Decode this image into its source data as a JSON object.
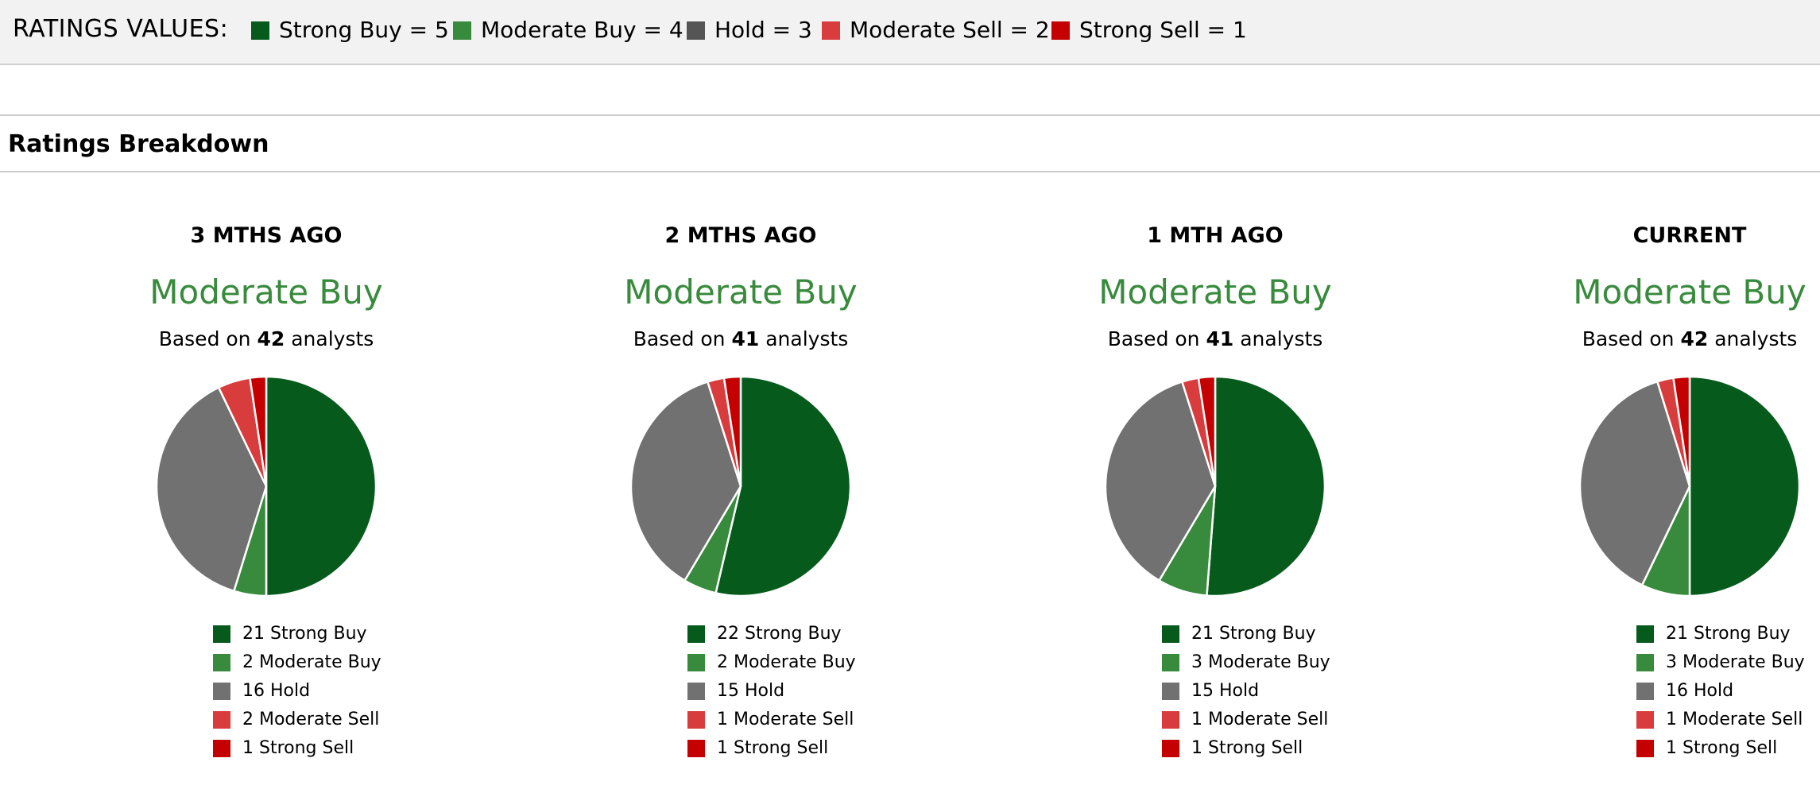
{
  "ratings_values": {
    "title": "RATINGS VALUES:",
    "items": [
      {
        "label": "Strong Buy = 5",
        "color": "#065a1c"
      },
      {
        "label": "Moderate Buy = 4",
        "color": "#388a3c"
      },
      {
        "label": "Hold = 3",
        "color": "#555555"
      },
      {
        "label": "Moderate Sell = 2",
        "color": "#d93c3c"
      },
      {
        "label": "Strong Sell = 1",
        "color": "#c40000"
      }
    ]
  },
  "section": {
    "title": "Ratings Breakdown"
  },
  "colors": {
    "strong_buy": "#065a1c",
    "moderate_buy": "#388a3c",
    "hold": "#717171",
    "moderate_sell": "#d93c3c",
    "strong_sell": "#c40000",
    "rating_text": "#388a3c"
  },
  "chart_data": [
    {
      "type": "pie",
      "title": "3 MTHS AGO",
      "rating": "Moderate Buy",
      "based_on_prefix": "Based on",
      "analysts": 42,
      "based_on_suffix": "analysts",
      "slices": [
        {
          "category": "Strong Buy",
          "value": 21,
          "label": "21 Strong Buy"
        },
        {
          "category": "Moderate Buy",
          "value": 2,
          "label": "2 Moderate Buy"
        },
        {
          "category": "Hold",
          "value": 16,
          "label": "16 Hold"
        },
        {
          "category": "Moderate Sell",
          "value": 2,
          "label": "2 Moderate Sell"
        },
        {
          "category": "Strong Sell",
          "value": 1,
          "label": "1 Strong Sell"
        }
      ]
    },
    {
      "type": "pie",
      "title": "2 MTHS AGO",
      "rating": "Moderate Buy",
      "based_on_prefix": "Based on",
      "analysts": 41,
      "based_on_suffix": "analysts",
      "slices": [
        {
          "category": "Strong Buy",
          "value": 22,
          "label": "22 Strong Buy"
        },
        {
          "category": "Moderate Buy",
          "value": 2,
          "label": "2 Moderate Buy"
        },
        {
          "category": "Hold",
          "value": 15,
          "label": "15 Hold"
        },
        {
          "category": "Moderate Sell",
          "value": 1,
          "label": "1 Moderate Sell"
        },
        {
          "category": "Strong Sell",
          "value": 1,
          "label": "1 Strong Sell"
        }
      ]
    },
    {
      "type": "pie",
      "title": "1 MTH AGO",
      "rating": "Moderate Buy",
      "based_on_prefix": "Based on",
      "analysts": 41,
      "based_on_suffix": "analysts",
      "slices": [
        {
          "category": "Strong Buy",
          "value": 21,
          "label": "21 Strong Buy"
        },
        {
          "category": "Moderate Buy",
          "value": 3,
          "label": "3 Moderate Buy"
        },
        {
          "category": "Hold",
          "value": 15,
          "label": "15 Hold"
        },
        {
          "category": "Moderate Sell",
          "value": 1,
          "label": "1 Moderate Sell"
        },
        {
          "category": "Strong Sell",
          "value": 1,
          "label": "1 Strong Sell"
        }
      ]
    },
    {
      "type": "pie",
      "title": "CURRENT",
      "rating": "Moderate Buy",
      "based_on_prefix": "Based on",
      "analysts": 42,
      "based_on_suffix": "analysts",
      "slices": [
        {
          "category": "Strong Buy",
          "value": 21,
          "label": "21 Strong Buy"
        },
        {
          "category": "Moderate Buy",
          "value": 3,
          "label": "3 Moderate Buy"
        },
        {
          "category": "Hold",
          "value": 16,
          "label": "16 Hold"
        },
        {
          "category": "Moderate Sell",
          "value": 1,
          "label": "1 Moderate Sell"
        },
        {
          "category": "Strong Sell",
          "value": 1,
          "label": "1 Strong Sell"
        }
      ]
    }
  ]
}
